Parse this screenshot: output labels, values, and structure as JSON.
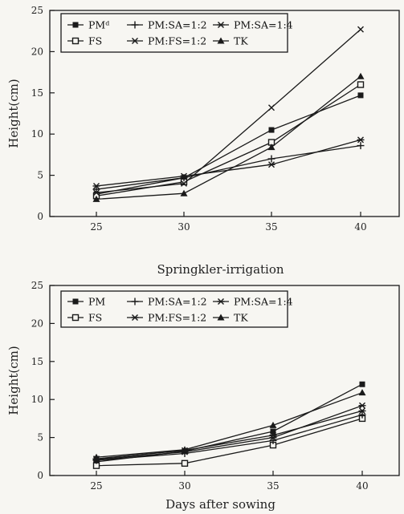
{
  "chart_data": [
    {
      "type": "line",
      "caption": "",
      "xlabel": "",
      "ylabel": "Height(cm)",
      "x": [
        25,
        30,
        35,
        40
      ],
      "xticks": [
        "25",
        "30",
        "35",
        "40"
      ],
      "ylim": [
        0,
        25
      ],
      "yticks": [
        "0",
        "5",
        "10",
        "15",
        "20",
        "25"
      ],
      "legend_position": "top-left",
      "series": [
        {
          "name": "PMᵈ",
          "marker": "filled-square",
          "values": [
            2.7,
            4.7,
            10.5,
            14.7
          ]
        },
        {
          "name": "FS",
          "marker": "open-square",
          "values": [
            2.5,
            4.2,
            9.0,
            16.0
          ]
        },
        {
          "name": "PM:SA=1:2",
          "marker": "plus",
          "values": [
            3.3,
            4.7,
            7.0,
            8.6
          ]
        },
        {
          "name": "PM:FS=1:2",
          "marker": "x",
          "values": [
            2.9,
            4.0,
            13.2,
            22.7
          ]
        },
        {
          "name": "PM:SA=1:4",
          "marker": "asterisk",
          "values": [
            3.7,
            4.9,
            6.3,
            9.3
          ]
        },
        {
          "name": "TK",
          "marker": "triangle",
          "values": [
            2.1,
            2.8,
            8.4,
            17.0
          ]
        }
      ]
    },
    {
      "type": "line",
      "caption": "Springkler-irrigation",
      "xlabel": "Days after sowing",
      "ylabel": "Height(cm)",
      "x": [
        25,
        30,
        35,
        40
      ],
      "xticks": [
        "25",
        "30",
        "35",
        "40"
      ],
      "ylim": [
        0,
        25
      ],
      "yticks": [
        "0",
        "5",
        "10",
        "15",
        "20",
        "25"
      ],
      "legend_position": "top-left",
      "series": [
        {
          "name": "PM",
          "marker": "filled-square",
          "values": [
            1.8,
            3.2,
            5.8,
            12.0
          ]
        },
        {
          "name": "FS",
          "marker": "open-square",
          "values": [
            1.3,
            1.6,
            4.0,
            7.5
          ]
        },
        {
          "name": "PM:SA=1:2",
          "marker": "plus",
          "values": [
            2.0,
            2.9,
            4.6,
            8.0
          ]
        },
        {
          "name": "PM:FS=1:2",
          "marker": "asterisk",
          "values": [
            2.2,
            3.3,
            5.3,
            8.5
          ]
        },
        {
          "name": "PM:SA=1:4",
          "marker": "asterisk",
          "values": [
            2.1,
            3.1,
            5.0,
            9.2
          ]
        },
        {
          "name": "TK",
          "marker": "triangle",
          "values": [
            2.4,
            3.4,
            6.6,
            10.9
          ]
        }
      ]
    }
  ],
  "colors": {
    "ink": "#1a1a1a",
    "background": "#f7f6f2"
  }
}
